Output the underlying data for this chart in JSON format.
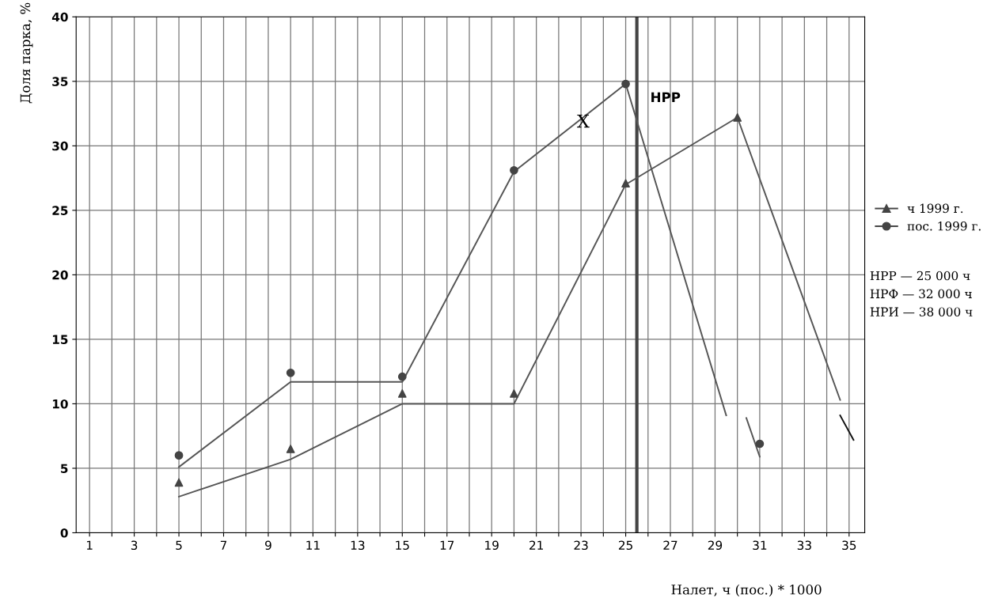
{
  "chart_data": {
    "type": "line",
    "xlabel": "Налет, ч (пос.) * 1000",
    "ylabel": "Доля парка, %",
    "xlim": [
      0.4,
      35.7
    ],
    "ylim": [
      0,
      40
    ],
    "xticks": [
      1,
      {
        "value": 2,
        "label": null
      },
      3,
      {
        "value": 4,
        "label": null
      },
      5,
      {
        "value": 6,
        "label": null
      },
      7,
      {
        "value": 8,
        "label": null
      },
      9,
      {
        "value": 10,
        "label": null
      },
      11,
      {
        "value": 12,
        "label": null
      },
      13,
      {
        "value": 14,
        "label": null
      },
      15,
      {
        "value": 16,
        "label": null
      },
      17,
      {
        "value": 18,
        "label": null
      },
      19,
      {
        "value": 20,
        "label": null
      },
      21,
      {
        "value": 22,
        "label": null
      },
      23,
      {
        "value": 24,
        "label": null
      },
      25,
      {
        "value": 26,
        "label": null
      },
      27,
      {
        "value": 28,
        "label": null
      },
      29,
      {
        "value": 30,
        "label": null
      },
      31,
      {
        "value": 32,
        "label": null
      },
      33,
      {
        "value": 34,
        "label": null
      },
      35
    ],
    "yticks": [
      0,
      5,
      10,
      15,
      20,
      25,
      30,
      35,
      40
    ],
    "grid": true,
    "legend": "right",
    "series": [
      {
        "name": "ч 1999 г.",
        "type": "scatter",
        "marker": "triangle",
        "color": "#444444",
        "x": [
          5,
          10,
          15,
          20,
          25,
          30
        ],
        "values": [
          3.9,
          6.5,
          10.8,
          10.8,
          27.1,
          32.2
        ]
      },
      {
        "name": "пос. 1999 г.",
        "type": "scatter",
        "marker": "circle",
        "color": "#444444",
        "x": [
          5,
          10,
          15,
          20,
          25,
          31
        ],
        "values": [
          6.0,
          12.4,
          12.1,
          28.1,
          34.8,
          6.9
        ]
      },
      {
        "color": "#555555",
        "x": [
          5,
          10,
          15,
          20,
          25,
          29.5,
          30,
          30.4,
          31.0
        ],
        "values": [
          5.1,
          11.7,
          11.7,
          28.0,
          34.8,
          9.1,
          null,
          8.9,
          5.9
        ]
      },
      {
        "color": "#555555",
        "x": [
          5,
          10,
          15,
          20,
          25,
          30,
          34.6
        ],
        "values": [
          2.8,
          5.7,
          10.0,
          10.0,
          27.0,
          32.2,
          10.3
        ]
      },
      {
        "color": "#111111",
        "x": [
          34.6,
          35.2
        ],
        "values": [
          9.1,
          7.2
        ]
      }
    ],
    "ref_lines": [
      {
        "axis": "x",
        "value": 25.5,
        "label": "НРР",
        "color": "#444444"
      }
    ],
    "annotations": [
      {
        "text": "X",
        "x": 23.1,
        "y": 31.8
      },
      "НРР — 25 000 ч",
      "НРФ — 32 000 ч",
      "НРИ — 38 000 ч"
    ]
  }
}
